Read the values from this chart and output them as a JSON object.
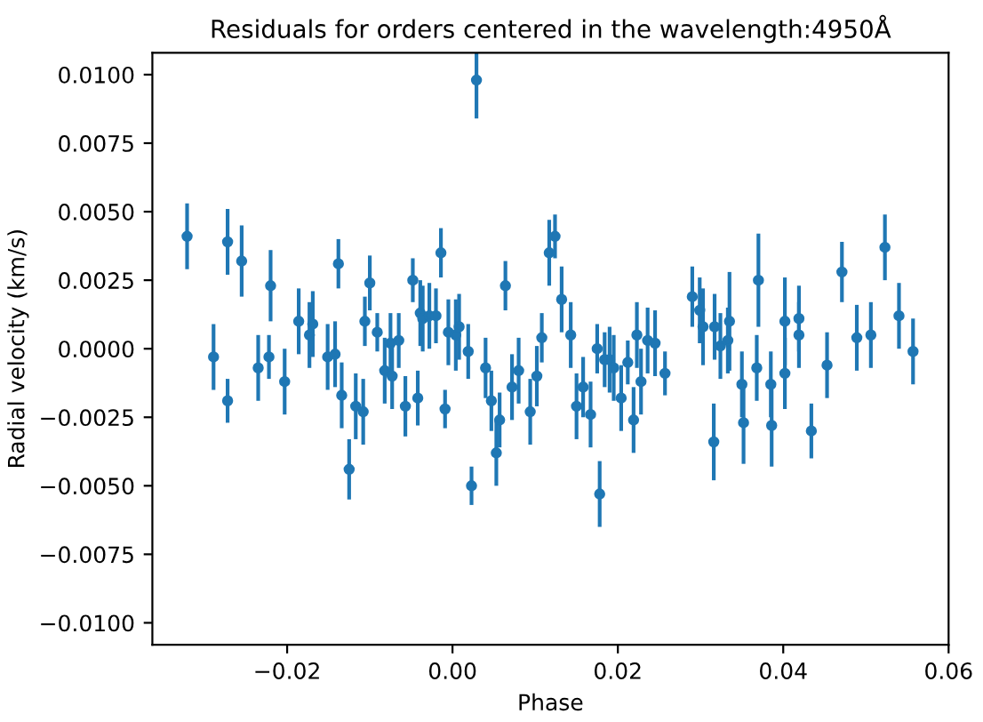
{
  "chart_data": {
    "type": "scatter",
    "title": "Residuals for orders centered in the wavelength:4950Å",
    "xlabel": "Phase",
    "ylabel": "Radial velocity (km/s)",
    "x": [
      -0.0321,
      -0.0289,
      -0.0272,
      -0.0272,
      -0.0255,
      -0.0235,
      -0.0222,
      -0.022,
      -0.0203,
      -0.0186,
      -0.0173,
      -0.0169,
      -0.0151,
      -0.0142,
      -0.0138,
      -0.0134,
      -0.0125,
      -0.0117,
      -0.0108,
      -0.0106,
      -0.01,
      -0.0091,
      -0.0082,
      -0.0075,
      -0.0073,
      -0.0065,
      -0.0057,
      -0.0048,
      -0.0042,
      -0.0039,
      -0.0036,
      -0.0028,
      -0.002,
      -0.0014,
      -0.0009,
      -0.0005,
      0.0004,
      0.0008,
      0.0019,
      0.0023,
      0.0029,
      0.004,
      0.0047,
      0.0053,
      0.0057,
      0.0064,
      0.0072,
      0.008,
      0.0094,
      0.0102,
      0.0108,
      0.0117,
      0.0124,
      0.0132,
      0.0143,
      0.015,
      0.0158,
      0.0167,
      0.0175,
      0.0178,
      0.0184,
      0.019,
      0.0195,
      0.0204,
      0.0212,
      0.0219,
      0.0223,
      0.0228,
      0.0236,
      0.0245,
      0.0257,
      0.029,
      0.0299,
      0.0303,
      0.0316,
      0.0317,
      0.0324,
      0.0333,
      0.0335,
      0.035,
      0.0352,
      0.0368,
      0.037,
      0.0385,
      0.0386,
      0.0402,
      0.0402,
      0.0419,
      0.0419,
      0.0434,
      0.0453,
      0.0471,
      0.0489,
      0.0506,
      0.0523,
      0.054,
      0.0557
    ],
    "series": [
      {
        "color": "#1f77b4",
        "values": [
          0.0041,
          -0.0003,
          0.0039,
          -0.0019,
          0.0032,
          -0.0007,
          -0.0003,
          0.0023,
          -0.0012,
          0.001,
          0.0005,
          0.0009,
          -0.0003,
          -0.0002,
          0.0031,
          -0.0017,
          -0.0044,
          -0.0021,
          -0.0023,
          0.001,
          0.0024,
          0.0006,
          -0.0008,
          0.0002,
          -0.001,
          0.0003,
          -0.0021,
          0.0025,
          -0.0018,
          0.0013,
          0.0011,
          0.0012,
          0.0012,
          0.0035,
          -0.0022,
          0.0006,
          0.0005,
          0.0008,
          -0.0001,
          -0.005,
          0.0098,
          -0.0007,
          -0.0019,
          -0.0038,
          -0.0026,
          0.0023,
          -0.0014,
          -0.0008,
          -0.0023,
          -0.001,
          0.0004,
          0.0035,
          0.0041,
          0.0018,
          0.0005,
          -0.0021,
          -0.0014,
          -0.0024,
          0.0,
          -0.0053,
          -0.0004,
          -0.0004,
          -0.0007,
          -0.0018,
          -0.0005,
          -0.0026,
          0.0005,
          -0.0012,
          0.0003,
          0.0002,
          -0.0009,
          0.0019,
          0.0014,
          0.0008,
          -0.0034,
          0.0008,
          0.0001,
          0.0003,
          0.001,
          -0.0013,
          -0.0027,
          -0.0007,
          0.0025,
          -0.0013,
          -0.0028,
          0.001,
          -0.0009,
          0.0011,
          0.0005,
          -0.003,
          -0.0006,
          0.0028,
          0.0004,
          0.0005,
          0.0037,
          0.0012,
          -0.0001
        ],
        "errors": [
          0.0012,
          0.0012,
          0.0012,
          0.0008,
          0.0013,
          0.0012,
          0.0008,
          0.0013,
          0.0012,
          0.0012,
          0.0012,
          0.0012,
          0.0012,
          0.0012,
          0.0009,
          0.0012,
          0.0011,
          0.0012,
          0.0012,
          0.0009,
          0.001,
          0.0007,
          0.0012,
          0.0011,
          0.0012,
          0.001,
          0.0011,
          0.0008,
          0.001,
          0.0012,
          0.0012,
          0.0012,
          0.001,
          0.0009,
          0.0007,
          0.0012,
          0.0013,
          0.0012,
          0.001,
          0.0007,
          0.0014,
          0.0011,
          0.0011,
          0.0012,
          0.001,
          0.0009,
          0.0012,
          0.0012,
          0.0012,
          0.0011,
          0.0009,
          0.0012,
          0.0008,
          0.0012,
          0.0012,
          0.0012,
          0.0011,
          0.0012,
          0.0009,
          0.0012,
          0.001,
          0.0012,
          0.0012,
          0.0012,
          0.0008,
          0.0012,
          0.0012,
          0.0012,
          0.0012,
          0.0012,
          0.0008,
          0.0011,
          0.0012,
          0.0014,
          0.0014,
          0.0012,
          0.0012,
          0.0012,
          0.0018,
          0.0012,
          0.0015,
          0.0012,
          0.0017,
          0.0012,
          0.0015,
          0.0016,
          0.0013,
          0.0012,
          0.0012,
          0.001,
          0.0012,
          0.0011,
          0.0012,
          0.0012,
          0.0012,
          0.0012,
          0.0012
        ]
      }
    ],
    "marker": "circle",
    "grid": false,
    "legend": false,
    "xlim": [
      -0.0363,
      0.06
    ],
    "ylim": [
      -0.0108,
      0.0108
    ],
    "xticks": [
      {
        "value": -0.02,
        "label": "−0.02"
      },
      {
        "value": 0.0,
        "label": "0.00"
      },
      {
        "value": 0.02,
        "label": "0.02"
      },
      {
        "value": 0.04,
        "label": "0.04"
      },
      {
        "value": 0.06,
        "label": "0.06"
      }
    ],
    "yticks": [
      {
        "value": -0.01,
        "label": "−0.0100"
      },
      {
        "value": -0.0075,
        "label": "−0.0075"
      },
      {
        "value": -0.005,
        "label": "−0.0050"
      },
      {
        "value": -0.0025,
        "label": "−0.0025"
      },
      {
        "value": 0.0,
        "label": "0.0000"
      },
      {
        "value": 0.0025,
        "label": "0.0025"
      },
      {
        "value": 0.005,
        "label": "0.0050"
      },
      {
        "value": 0.0075,
        "label": "0.0075"
      },
      {
        "value": 0.01,
        "label": "0.0100"
      }
    ]
  }
}
